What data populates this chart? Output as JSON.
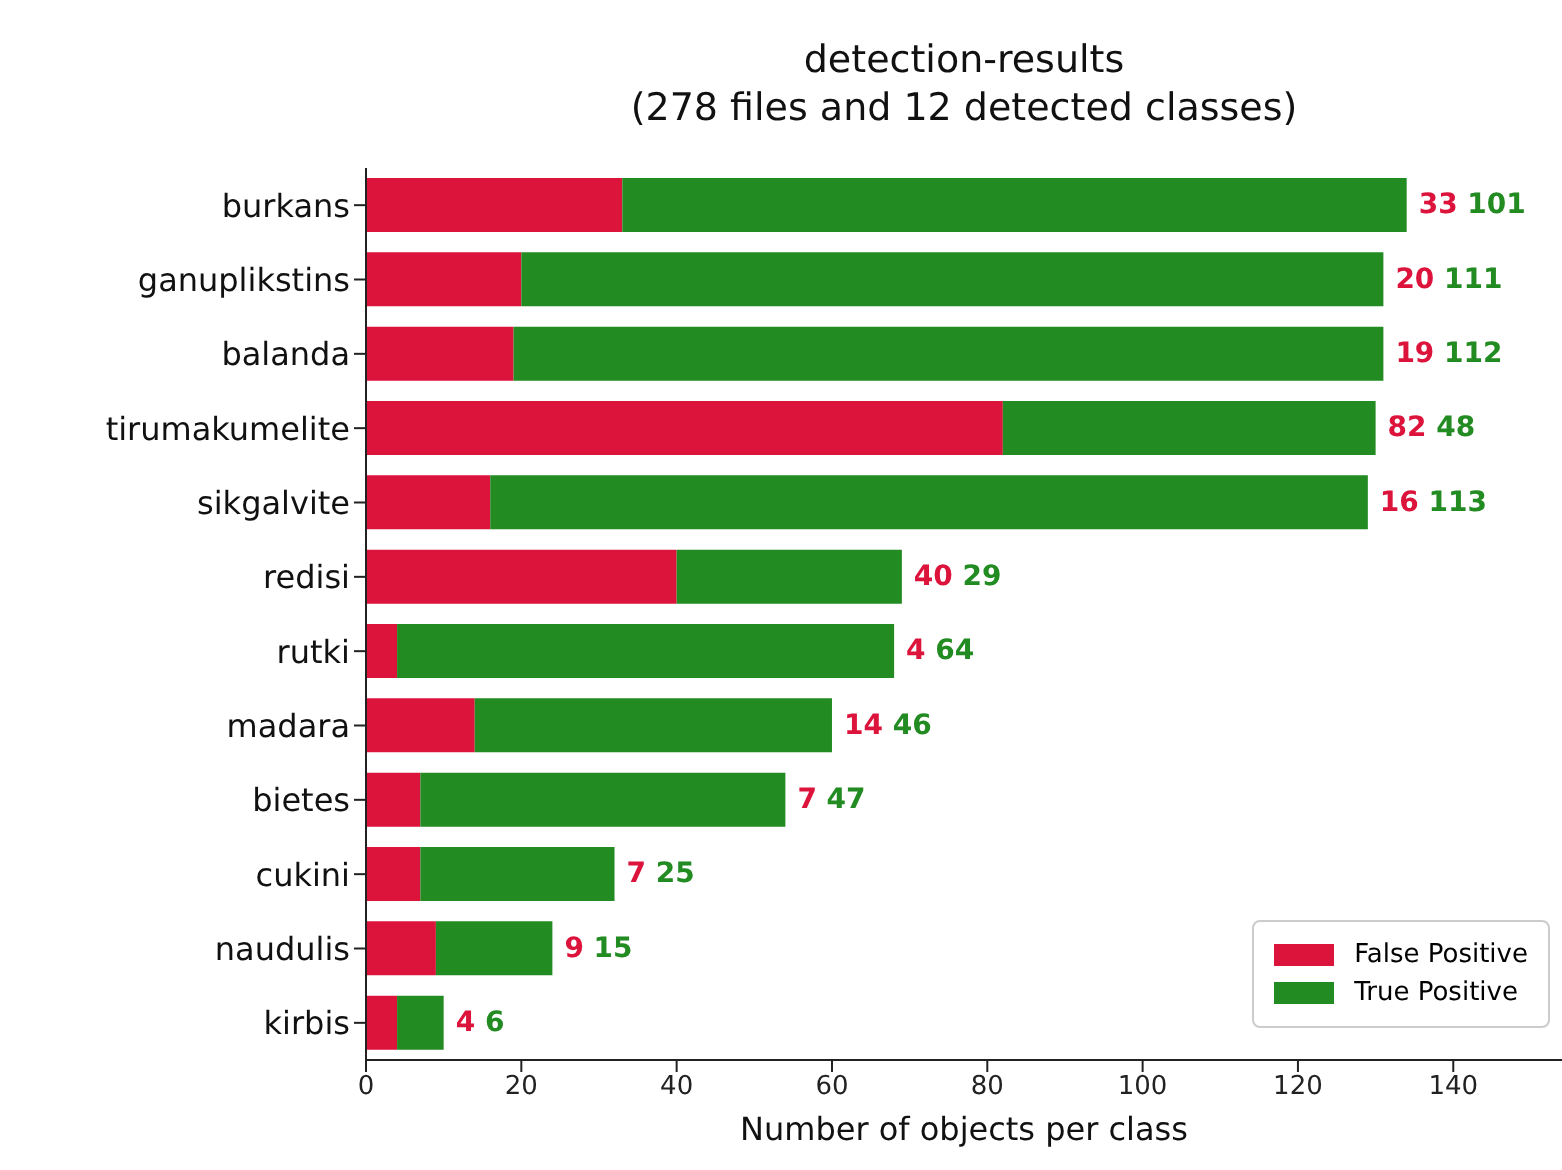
{
  "chart_data": {
    "type": "bar",
    "orientation": "horizontal",
    "stacked": true,
    "title": "detection-results",
    "subtitle": "(278 files and 12 detected classes)",
    "xlabel": "Number of objects per class",
    "categories": [
      "burkans",
      "ganuplikstins",
      "balanda",
      "tirumakumelite",
      "sikgalvite",
      "redisi",
      "rutki",
      "madara",
      "bietes",
      "cukini",
      "naudulis",
      "kirbis"
    ],
    "series": [
      {
        "name": "False Positive",
        "color": "#dc143c",
        "values": [
          33,
          20,
          19,
          82,
          16,
          40,
          4,
          14,
          7,
          7,
          9,
          4
        ]
      },
      {
        "name": "True Positive",
        "color": "#228b22",
        "values": [
          101,
          111,
          112,
          48,
          113,
          29,
          64,
          46,
          47,
          25,
          15,
          6
        ]
      }
    ],
    "annotations": [
      {
        "text": "33 101",
        "x": 134,
        "y": "burkans"
      },
      {
        "text": "20 111",
        "x": 131,
        "y": "ganuplikstins"
      },
      {
        "text": "19 112",
        "x": 131,
        "y": "balanda"
      },
      {
        "text": "82 48",
        "x": 130,
        "y": "tirumakumelite"
      },
      {
        "text": "16 113",
        "x": 129,
        "y": "sikgalvite"
      },
      {
        "text": "40 29",
        "x": 69,
        "y": "redisi"
      },
      {
        "text": "4 64",
        "x": 68,
        "y": "rutki"
      },
      {
        "text": "14 46",
        "x": 60,
        "y": "madara"
      },
      {
        "text": "7 47",
        "x": 54,
        "y": "bietes"
      },
      {
        "text": "7 25",
        "x": 32,
        "y": "cukini"
      },
      {
        "text": "9 15",
        "x": 24,
        "y": "naudulis"
      },
      {
        "text": "4 6",
        "x": 10,
        "y": "kirbis"
      }
    ],
    "xlim": [
      0,
      154
    ],
    "xticks": [
      0,
      20,
      40,
      60,
      80,
      100,
      120,
      140
    ],
    "legend": "bottom right",
    "grid": false
  }
}
